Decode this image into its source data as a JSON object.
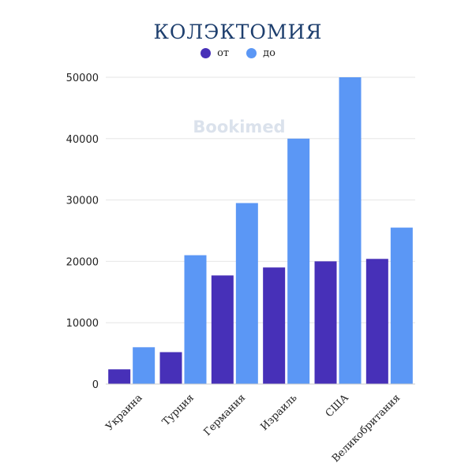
{
  "watermark": "Bookimed",
  "colors": {
    "series_from": "#4730b8",
    "series_to": "#5b97f5",
    "grid": "#e6e6e6",
    "title": "#1e3f6e"
  },
  "chart_data": {
    "type": "bar",
    "title": "КОЛЭКТОМИЯ",
    "xlabel": "",
    "ylabel": "",
    "categories": [
      "Украина",
      "Турция",
      "Германия",
      "Израиль",
      "США",
      "Великобритания"
    ],
    "series": [
      {
        "name": "от",
        "values": [
          2400,
          5200,
          17700,
          19000,
          20000,
          20400
        ]
      },
      {
        "name": "до",
        "values": [
          6000,
          21000,
          29500,
          40000,
          50000,
          25500
        ]
      }
    ],
    "ylim": [
      0,
      50000
    ],
    "yticks": [
      0,
      10000,
      20000,
      30000,
      40000,
      50000
    ],
    "grid": true,
    "legend_position": "top-center"
  }
}
